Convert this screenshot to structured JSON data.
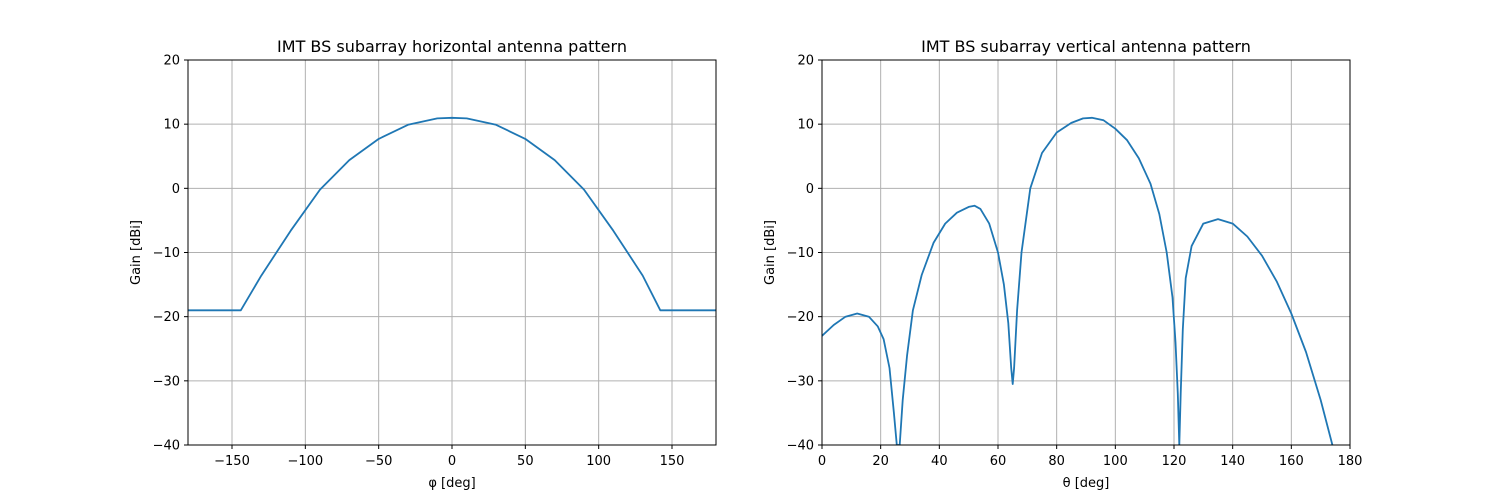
{
  "chart_data": [
    {
      "type": "line",
      "title": "IMT BS subarray horizontal antenna pattern",
      "xlabel": "φ [deg]",
      "ylabel": "Gain [dBi]",
      "xlim": [
        -180,
        180
      ],
      "ylim": [
        -40,
        20
      ],
      "xticks": [
        -150,
        -100,
        -50,
        0,
        50,
        100,
        150
      ],
      "yticks": [
        -40,
        -30,
        -20,
        -10,
        0,
        10,
        20
      ],
      "grid": true,
      "color": "#1f77b4",
      "series": [
        {
          "x": [
            -180,
            -144,
            -130,
            -110,
            -90,
            -70,
            -50,
            -30,
            -10,
            0,
            10,
            30,
            50,
            70,
            90,
            110,
            130,
            142,
            180
          ],
          "y": [
            -19,
            -19,
            -13.6,
            -6.6,
            -0.2,
            4.4,
            7.7,
            9.9,
            10.9,
            11,
            10.9,
            9.9,
            7.7,
            4.4,
            -0.2,
            -6.6,
            -13.6,
            -19,
            -19
          ]
        }
      ]
    },
    {
      "type": "line",
      "title": "IMT BS subarray vertical antenna pattern",
      "xlabel": "θ [deg]",
      "ylabel": "Gain [dBi]",
      "xlim": [
        0,
        180
      ],
      "ylim": [
        -40,
        20
      ],
      "xticks": [
        0,
        20,
        40,
        60,
        80,
        100,
        120,
        140,
        160,
        180
      ],
      "yticks": [
        -40,
        -30,
        -20,
        -10,
        0,
        10,
        20
      ],
      "grid": true,
      "color": "#1f77b4",
      "series": [
        {
          "x": [
            0,
            4,
            8,
            12,
            16,
            19,
            21,
            23,
            24.5,
            25.5,
            26,
            26.5,
            27.5,
            29,
            31,
            34,
            38,
            42,
            46,
            50,
            52,
            54,
            57,
            60,
            62,
            63.5,
            64.5,
            65,
            65.5,
            66.5,
            68,
            71,
            75,
            80,
            85,
            89,
            92,
            96,
            100,
            104,
            108,
            112,
            115,
            117.5,
            119.5,
            120.5,
            121.3,
            121.8,
            122.3,
            123,
            124,
            126,
            130,
            135,
            140,
            145,
            150,
            155,
            160,
            165,
            170,
            174
          ],
          "y": [
            -23,
            -21.3,
            -20,
            -19.5,
            -20,
            -21.5,
            -23.5,
            -28,
            -35,
            -40,
            -40,
            -40,
            -33,
            -26,
            -19,
            -13.5,
            -8.5,
            -5.5,
            -3.8,
            -2.9,
            -2.7,
            -3.2,
            -5.5,
            -10,
            -15,
            -21,
            -28,
            -30.5,
            -28,
            -19,
            -10,
            0,
            5.5,
            8.7,
            10.2,
            10.9,
            11,
            10.6,
            9.3,
            7.5,
            4.7,
            0.7,
            -4,
            -10,
            -17,
            -24,
            -32,
            -40,
            -32,
            -22,
            -14,
            -9,
            -5.5,
            -4.8,
            -5.5,
            -7.5,
            -10.5,
            -14.5,
            -19.5,
            -25.5,
            -33,
            -40
          ]
        }
      ]
    }
  ]
}
